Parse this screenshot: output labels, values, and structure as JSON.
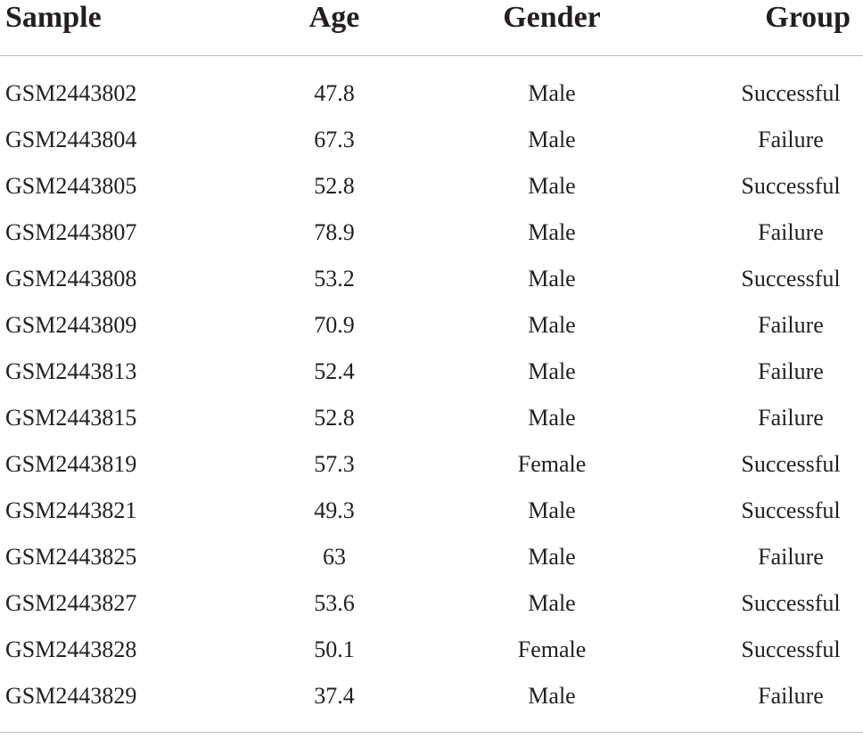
{
  "table": {
    "headers": [
      "Sample",
      "Age",
      "Gender",
      "Group"
    ],
    "rows": [
      [
        "GSM2443802",
        "47.8",
        "Male",
        "Successful"
      ],
      [
        "GSM2443804",
        "67.3",
        "Male",
        "Failure"
      ],
      [
        "GSM2443805",
        "52.8",
        "Male",
        "Successful"
      ],
      [
        "GSM2443807",
        "78.9",
        "Male",
        "Failure"
      ],
      [
        "GSM2443808",
        "53.2",
        "Male",
        "Successful"
      ],
      [
        "GSM2443809",
        "70.9",
        "Male",
        "Failure"
      ],
      [
        "GSM2443813",
        "52.4",
        "Male",
        "Failure"
      ],
      [
        "GSM2443815",
        "52.8",
        "Male",
        "Failure"
      ],
      [
        "GSM2443819",
        "57.3",
        "Female",
        "Successful"
      ],
      [
        "GSM2443821",
        "49.3",
        "Male",
        "Successful"
      ],
      [
        "GSM2443825",
        "63",
        "Male",
        "Failure"
      ],
      [
        "GSM2443827",
        "53.6",
        "Male",
        "Successful"
      ],
      [
        "GSM2443828",
        "50.1",
        "Female",
        "Successful"
      ],
      [
        "GSM2443829",
        "37.4",
        "Male",
        "Failure"
      ]
    ]
  },
  "colors": {
    "text": "#231f20",
    "rule": "#bfbfbf"
  }
}
